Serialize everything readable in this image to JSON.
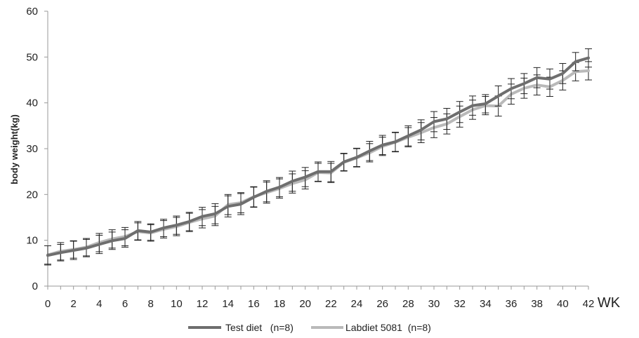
{
  "chart_data": {
    "type": "line",
    "title": "",
    "xlabel": "WK",
    "ylabel": "body weight(kg)",
    "xlim": [
      0,
      42
    ],
    "ylim": [
      0,
      60
    ],
    "x_ticks": [
      "0",
      "2",
      "4",
      "6",
      "8",
      "10",
      "12",
      "14",
      "16",
      "18",
      "20",
      "22",
      "24",
      "26",
      "28",
      "30",
      "32",
      "34",
      "36",
      "38",
      "40",
      "42"
    ],
    "y_ticks": [
      "0",
      "10",
      "20",
      "30",
      "40",
      "50",
      "60"
    ],
    "grid": false,
    "legend_position": "bottom",
    "x": [
      0,
      1,
      2,
      3,
      4,
      5,
      6,
      7,
      8,
      9,
      10,
      11,
      12,
      13,
      14,
      15,
      16,
      17,
      18,
      19,
      20,
      21,
      22,
      23,
      24,
      25,
      26,
      27,
      28,
      29,
      30,
      31,
      32,
      33,
      34,
      35,
      36,
      37,
      38,
      39,
      40,
      41,
      42
    ],
    "series": [
      {
        "name": "Test diet   (n=8)",
        "color": "#6e6e6e",
        "values": [
          6.7,
          7.3,
          7.8,
          8.3,
          9.1,
          9.9,
          10.4,
          12.1,
          11.8,
          12.7,
          13.3,
          14.1,
          15.2,
          15.8,
          17.4,
          17.9,
          19.4,
          20.7,
          21.6,
          22.9,
          23.8,
          25.0,
          25.0,
          27.1,
          28.1,
          29.5,
          30.8,
          31.5,
          32.8,
          34.1,
          35.9,
          36.5,
          38.0,
          39.4,
          39.8,
          41.5,
          43.1,
          44.2,
          45.5,
          45.2,
          46.4,
          49.0,
          49.8
        ],
        "errors": [
          2.1,
          1.8,
          2.0,
          1.9,
          2.0,
          1.9,
          1.9,
          2.0,
          1.8,
          1.9,
          2.0,
          2.0,
          2.0,
          2.2,
          2.3,
          2.3,
          2.2,
          2.3,
          2.1,
          2.2,
          2.1,
          2.1,
          2.2,
          1.9,
          2.0,
          2.1,
          2.1,
          2.1,
          2.2,
          2.2,
          2.2,
          2.3,
          2.3,
          2.1,
          2.0,
          2.2,
          2.2,
          2.2,
          2.2,
          2.2,
          2.2,
          2.0,
          2.0
        ]
      },
      {
        "name": "Labdiet 5081  (n=8)",
        "color": "#b9b9b9",
        "values": [
          6.8,
          7.6,
          8.0,
          8.5,
          9.5,
          10.3,
          10.8,
          11.9,
          11.6,
          12.4,
          13.0,
          13.9,
          14.7,
          15.3,
          17.8,
          18.2,
          19.5,
          20.4,
          21.3,
          22.4,
          23.2,
          24.8,
          24.7,
          27.0,
          28.0,
          29.1,
          30.5,
          31.4,
          32.5,
          33.5,
          34.6,
          35.4,
          37.0,
          38.5,
          39.4,
          39.3,
          41.9,
          43.2,
          43.9,
          43.5,
          44.9,
          46.8,
          47.0
        ],
        "errors": [
          2.0,
          1.9,
          1.9,
          1.9,
          2.0,
          2.0,
          2.0,
          1.9,
          1.8,
          1.9,
          2.0,
          2.0,
          2.0,
          2.1,
          2.2,
          2.2,
          2.2,
          2.3,
          2.1,
          2.1,
          2.0,
          2.0,
          2.1,
          1.9,
          2.0,
          2.0,
          2.0,
          2.1,
          2.1,
          2.2,
          2.2,
          2.2,
          2.3,
          2.1,
          2.0,
          2.2,
          2.2,
          2.2,
          2.2,
          2.1,
          2.1,
          2.0,
          2.0
        ]
      }
    ]
  }
}
